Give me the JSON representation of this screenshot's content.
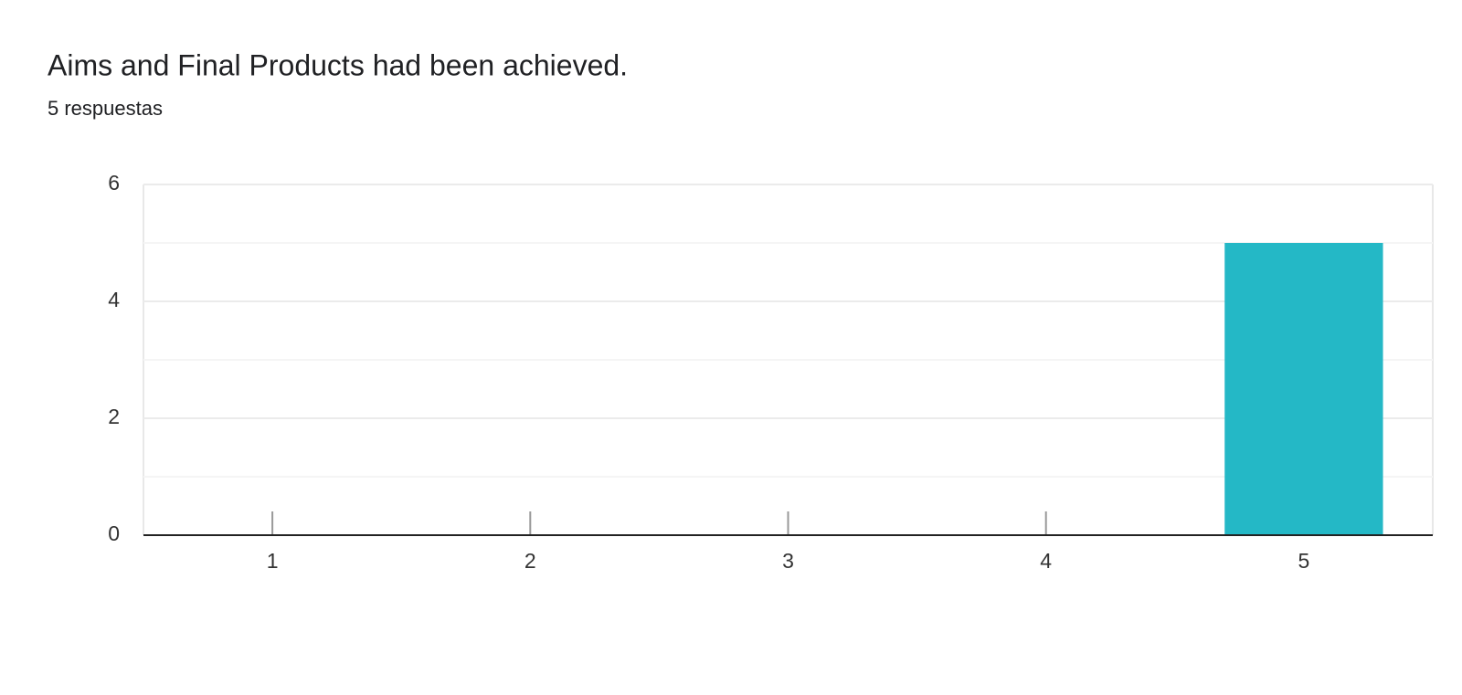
{
  "chart_data": {
    "type": "bar",
    "title": "Aims and Final Products had been achieved.",
    "subtitle": "5 respuestas",
    "categories": [
      "1",
      "2",
      "3",
      "4",
      "5"
    ],
    "values": [
      0,
      0,
      0,
      0,
      5
    ],
    "color": "#24b8c6",
    "ylim": [
      0,
      6
    ],
    "yticks": [
      0,
      2,
      4,
      6
    ],
    "minor_yticks": [
      1,
      3,
      5
    ],
    "grid": true
  }
}
